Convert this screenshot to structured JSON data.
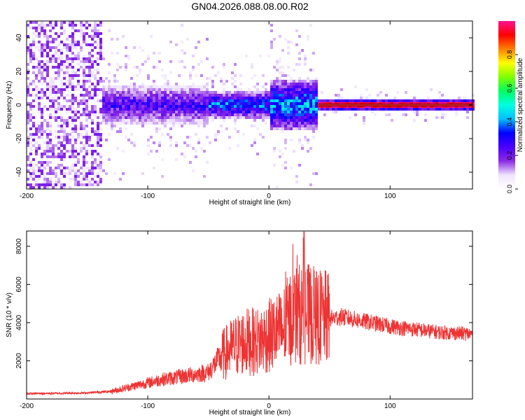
{
  "title": "GN04.2026.088.08.00.R02",
  "chart_data": [
    {
      "type": "heatmap",
      "xlabel": "Height of straight line (km)",
      "ylabel": "Frequency (Hz)",
      "xlim": [
        -200,
        168
      ],
      "ylim": [
        -50,
        50
      ],
      "x_ticks": [
        -200,
        -100,
        0,
        100
      ],
      "y_ticks": [
        -40,
        -20,
        0,
        20,
        40
      ],
      "colorbar": {
        "label": "Normalized spectral amplitude",
        "range": [
          0,
          1
        ],
        "ticks": [
          0.0,
          0.2,
          0.4,
          0.6,
          0.8
        ],
        "colormap": [
          "#ffffff",
          "#f0e4ff",
          "#8a2be2",
          "#4b00ff",
          "#0000ff",
          "#00bfff",
          "#00ffe0",
          "#00ff60",
          "#7fff00",
          "#ffff00",
          "#ff8000",
          "#ff0000",
          "#ff1493"
        ]
      },
      "bands": [
        {
          "x_range": [
            -200,
            -138
          ],
          "freq_halfwidth": 50,
          "level": 0.08
        },
        {
          "x_range": [
            -138,
            -50
          ],
          "freq_halfwidth": 12,
          "level": 0.3
        },
        {
          "x_range": [
            -50,
            0
          ],
          "freq_halfwidth": 8,
          "level": 0.45
        },
        {
          "x_range": [
            0,
            40
          ],
          "freq_halfwidth": 15,
          "level": 0.5
        },
        {
          "x_range": [
            40,
            168
          ],
          "freq_halfwidth": 3,
          "level": 0.75
        }
      ]
    },
    {
      "type": "line",
      "xlabel": "Height of straight line (km)",
      "ylabel": "SNR (10 * v/v)",
      "xlim": [
        -200,
        168
      ],
      "ylim": [
        0,
        8800
      ],
      "x_ticks": [
        -200,
        -100,
        0,
        100
      ],
      "y_ticks": [
        2000,
        4000,
        6000,
        8000
      ],
      "series_color": "#ee3333",
      "envelope": {
        "x": [
          -200,
          -150,
          -130,
          -110,
          -90,
          -70,
          -50,
          -40,
          -30,
          -20,
          -10,
          0,
          10,
          20,
          30,
          40,
          50,
          60,
          80,
          100,
          120,
          140,
          168
        ],
        "y": [
          280,
          320,
          400,
          700,
          1000,
          1200,
          1400,
          2200,
          2700,
          3000,
          3000,
          3300,
          3600,
          4400,
          4500,
          4300,
          4200,
          4300,
          4050,
          3800,
          3650,
          3500,
          3400
        ]
      },
      "peak": {
        "x": 29,
        "y": 8750
      }
    }
  ]
}
